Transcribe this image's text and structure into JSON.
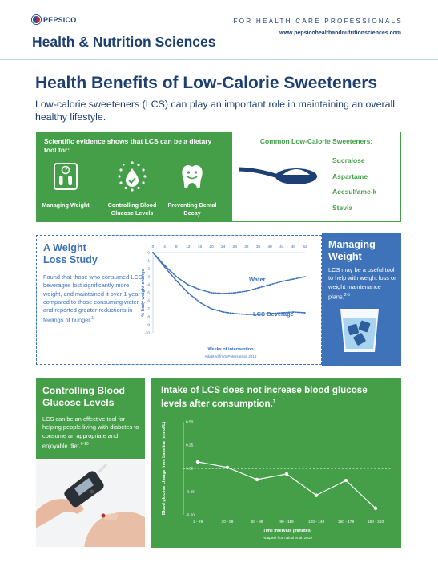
{
  "header": {
    "brand": "PEPSICO",
    "title": "Health & Nutrition Sciences",
    "audience": "FOR HEALTH CARE PROFESSIONALS",
    "website": "www.pepsicohealthandnutritionsciences.com"
  },
  "page": {
    "title": "Health Benefits of Low-Calorie Sweeteners",
    "subtitle": "Low-calorie sweeteners (LCS) can play an important role in maintaining an overall healthy lifestyle."
  },
  "evidence": {
    "heading": "Scientific evidence shows that LCS can be a dietary tool for:",
    "benefits": [
      {
        "label": "Managing Weight",
        "icon": "scale-icon"
      },
      {
        "label": "Controlling Blood Glucose Levels",
        "icon": "glucose-drop-icon"
      },
      {
        "label": "Preventing Dental Decay",
        "icon": "tooth-icon"
      }
    ]
  },
  "sweeteners": {
    "heading": "Common Low-Calorie Sweeteners:",
    "items": [
      "Sucralose",
      "Aspartame",
      "Acesulfame-k",
      "Stevia"
    ]
  },
  "weight_study": {
    "title_line1": "A Weight",
    "title_line2": "Loss Study",
    "text": "Found that those who consumed LCS beverages lost significantly more weight, and maintained it over 1 year compared to those consuming water, and reported greater reductions in feelings of hunger.",
    "text_ref": "1",
    "citation": "Adapted from Peters et al. 2016"
  },
  "managing": {
    "title_line1": "Managing",
    "title_line2": "Weight",
    "text": "LCS may be a useful tool to help with weight loss or weight maintenance plans.",
    "text_ref": "2-5"
  },
  "glucose": {
    "title_line1": "Controlling Blood",
    "title_line2": "Glucose Levels",
    "text": "LCS can be an effective tool for helping people living with diabetes to consume an appropriate and enjoyable diet.",
    "text_ref": "6-10"
  },
  "intake": {
    "title": "Intake of LCS does not increase blood glucose levels after consumption.",
    "title_ref": "7",
    "citation": "Adapted from Nicol et al. 2019"
  },
  "chart_data": [
    {
      "type": "line",
      "xlabel": "Weeks of intervention",
      "ylabel": "% body weight change",
      "xticks": [
        0,
        4,
        8,
        12,
        16,
        20,
        24,
        28,
        32,
        36,
        40,
        44,
        48,
        52
      ],
      "yticks": [
        0,
        -1,
        -2,
        -3,
        -4,
        -5,
        -6,
        -7,
        -8,
        -9,
        -10
      ],
      "xlim": [
        0,
        52
      ],
      "ylim": [
        -10,
        0
      ],
      "grid": false,
      "series": [
        {
          "name": "Water",
          "x": [
            0,
            4,
            8,
            12,
            16,
            20,
            24,
            28,
            32,
            36,
            40,
            44,
            48,
            52
          ],
          "values": [
            0,
            -1.6,
            -3.0,
            -4.0,
            -4.6,
            -5.0,
            -5.1,
            -5.0,
            -4.8,
            -4.4,
            -4.0,
            -3.6,
            -3.3,
            -3.0
          ]
        },
        {
          "name": "LCS Beverage",
          "x": [
            0,
            4,
            8,
            12,
            16,
            20,
            24,
            28,
            32,
            36,
            40,
            44,
            48,
            52
          ],
          "values": [
            0,
            -1.8,
            -3.5,
            -5.0,
            -6.2,
            -7.0,
            -7.4,
            -7.6,
            -7.7,
            -7.7,
            -7.6,
            -7.5,
            -7.4,
            -7.5
          ]
        }
      ]
    },
    {
      "type": "line",
      "xlabel": "Time intervals (minutes)",
      "ylabel": "Blood glucose change from baseline (mmol/L)",
      "categories": [
        "1 - 29",
        "30 - 59",
        "60 - 89",
        "90 - 119",
        "120 - 149",
        "150 - 179",
        "180 - 210"
      ],
      "yticks": [
        "0.50",
        "0.25",
        "0.00",
        "-0.25",
        "-0.50"
      ],
      "ylim": [
        -0.5,
        0.5
      ],
      "grid": false,
      "reference_line": 0,
      "series": [
        {
          "values": [
            0.07,
            0.01,
            -0.12,
            -0.06,
            -0.29,
            -0.13,
            -0.43
          ]
        }
      ]
    }
  ]
}
